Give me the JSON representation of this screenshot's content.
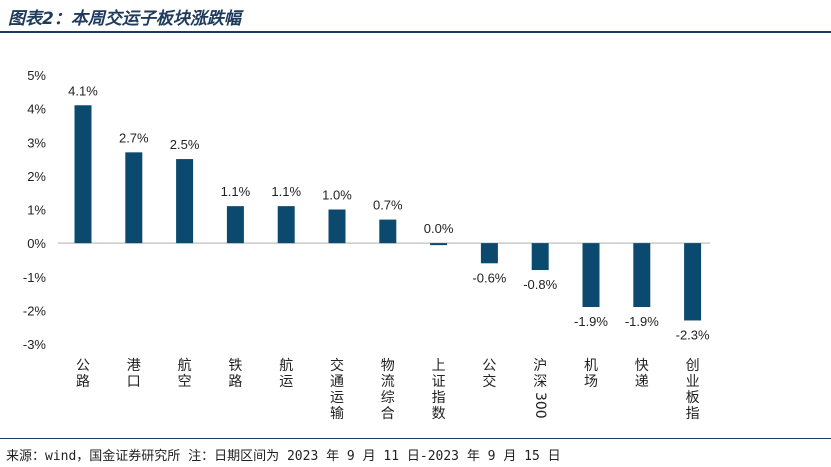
{
  "title": "图表2：本周交运子板块涨跌幅",
  "source_note": "来源：wind，国金证券研究所   注：日期区间为 2023 年 9 月 11 日-2023 年 9 月 15 日",
  "colors": {
    "bar": "#0b4a6e",
    "title": "#1f3a5a",
    "axis": "#bfbfbf"
  },
  "chart_data": {
    "type": "bar",
    "categories": [
      "公路",
      "港口",
      "航空",
      "铁路",
      "航运",
      "交通运输",
      "物流综合",
      "上证指数",
      "公交",
      "沪深300",
      "机场",
      "快递",
      "创业板指"
    ],
    "values": [
      4.1,
      2.7,
      2.5,
      1.1,
      1.1,
      1.0,
      0.7,
      0.0,
      -0.6,
      -0.8,
      -1.9,
      -1.9,
      -2.3
    ],
    "data_labels": [
      "4.1%",
      "2.7%",
      "2.5%",
      "1.1%",
      "1.1%",
      "1.0%",
      "0.7%",
      "0.0%",
      "-0.6%",
      "-0.8%",
      "-1.9%",
      "-1.9%",
      "-2.3%"
    ],
    "yticks": [
      "5%",
      "4%",
      "3%",
      "2%",
      "1%",
      "0%",
      "-1%",
      "-2%",
      "-3%"
    ],
    "ylim": [
      -3,
      5
    ],
    "grid": false,
    "legend": "none"
  }
}
